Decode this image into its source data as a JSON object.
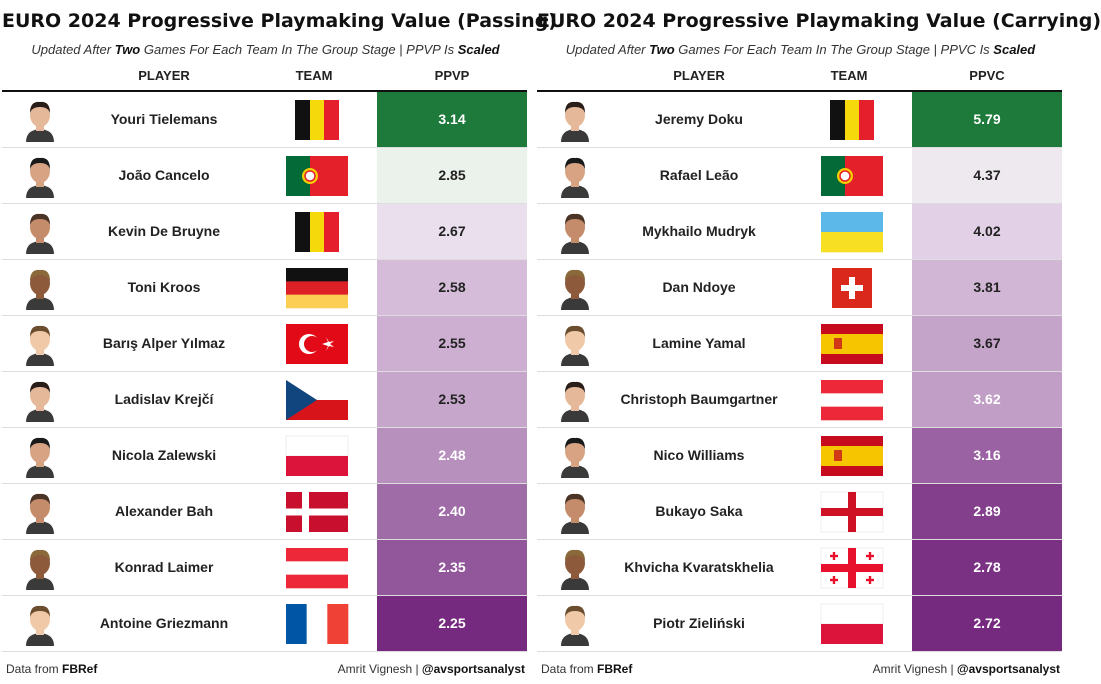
{
  "chart_data": [
    {
      "type": "table",
      "title": "EURO 2024 Progressive Playmaking Value (Passing)",
      "subtitle": {
        "pre": "Updated After ",
        "b1": "Two",
        "mid": " Games For Each Team In The Group Stage | PPVP Is ",
        "b2": "Scaled"
      },
      "columns": [
        "PLAYER",
        "TEAM",
        "PPVP"
      ],
      "rows": [
        {
          "player": "Youri Tielemans",
          "team": "belgium",
          "value": "3.14"
        },
        {
          "player": "João Cancelo",
          "team": "portugal",
          "value": "2.85"
        },
        {
          "player": "Kevin De Bruyne",
          "team": "belgium",
          "value": "2.67"
        },
        {
          "player": "Toni Kroos",
          "team": "germany",
          "value": "2.58"
        },
        {
          "player": "Barış Alper Yılmaz",
          "team": "turkey",
          "value": "2.55"
        },
        {
          "player": "Ladislav Krejčí",
          "team": "czechia",
          "value": "2.53"
        },
        {
          "player": "Nicola Zalewski",
          "team": "poland",
          "value": "2.48"
        },
        {
          "player": "Alexander Bah",
          "team": "denmark",
          "value": "2.40"
        },
        {
          "player": "Konrad Laimer",
          "team": "austria",
          "value": "2.35"
        },
        {
          "player": "Antoine Griezmann",
          "team": "france",
          "value": "2.25"
        }
      ],
      "footer": {
        "source_pre": "Data from ",
        "source": "FBRef",
        "credit_pre": "Amrit Vignesh | ",
        "credit": "@avsportsanalyst"
      }
    },
    {
      "type": "table",
      "title": "EURO 2024 Progressive Playmaking Value (Carrying)",
      "subtitle": {
        "pre": "Updated After ",
        "b1": "Two",
        "mid": " Games For Each Team In The Group Stage | PPVC Is ",
        "b2": "Scaled"
      },
      "columns": [
        "PLAYER",
        "TEAM",
        "PPVC"
      ],
      "rows": [
        {
          "player": "Jeremy Doku",
          "team": "belgium",
          "value": "5.79"
        },
        {
          "player": "Rafael Leão",
          "team": "portugal",
          "value": "4.37"
        },
        {
          "player": "Mykhailo Mudryk",
          "team": "ukraine",
          "value": "4.02"
        },
        {
          "player": "Dan Ndoye",
          "team": "switzerland",
          "value": "3.81"
        },
        {
          "player": "Lamine Yamal",
          "team": "spain",
          "value": "3.67"
        },
        {
          "player": "Christoph Baumgartner",
          "team": "austria",
          "value": "3.62"
        },
        {
          "player": "Nico Williams",
          "team": "spain",
          "value": "3.16"
        },
        {
          "player": "Bukayo Saka",
          "team": "england",
          "value": "2.89"
        },
        {
          "player": "Khvicha Kvaratskhelia",
          "team": "georgia",
          "value": "2.78"
        },
        {
          "player": "Piotr Zieliński",
          "team": "poland",
          "value": "2.72"
        }
      ],
      "footer": {
        "source_pre": "Data from ",
        "source": "FBRef",
        "credit_pre": "Amrit Vignesh | ",
        "credit": "@avsportsanalyst"
      }
    }
  ],
  "colors": {
    "scale_high": "#1e7a3a",
    "scale_mid_light": "#f2f2f2",
    "scale_low": "#75297f",
    "light_green": "#d5efd3",
    "lavender": "#e9dcec"
  }
}
